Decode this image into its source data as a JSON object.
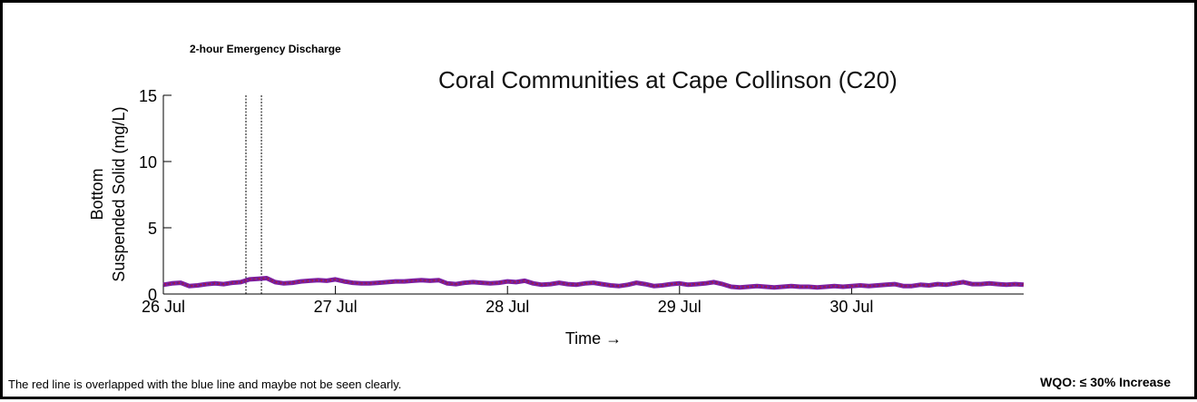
{
  "annotation": "2-hour Emergency Discharge",
  "footnote": "The red line is overlapped with the blue line and maybe not be seen clearly.",
  "wqo": "WQO: ≤ 30% Increase",
  "chart_data": {
    "type": "line",
    "title": "Coral Communities at Cape Collinson (C20)",
    "xlabel": "Time →",
    "ylabel_line1": "Bottom",
    "ylabel_line2": "Suspended Solid (mg/L)",
    "ylim": [
      0,
      15
    ],
    "yticks": [
      0,
      5,
      10,
      15
    ],
    "xlim": [
      0,
      5
    ],
    "xticks": [
      {
        "value": 0,
        "label": "26 Jul"
      },
      {
        "value": 1,
        "label": "27 Jul"
      },
      {
        "value": 2,
        "label": "28 Jul"
      },
      {
        "value": 3,
        "label": "29 Jul"
      },
      {
        "value": 4,
        "label": "30 Jul"
      }
    ],
    "discharge_window": [
      0.48,
      0.57
    ],
    "colors": {
      "series_main": "#3a2ab0",
      "series_overlay": "#c0182a",
      "series_outline": "#7a1fa6"
    },
    "series": [
      {
        "x": [
          0,
          0.05,
          0.1,
          0.15,
          0.2,
          0.25,
          0.3,
          0.35,
          0.4,
          0.45,
          0.5,
          0.55,
          0.6,
          0.65,
          0.7,
          0.75,
          0.8,
          0.85,
          0.9,
          0.95,
          1.0,
          1.05,
          1.1,
          1.15,
          1.2,
          1.25,
          1.3,
          1.35,
          1.4,
          1.45,
          1.5,
          1.55,
          1.6,
          1.65,
          1.7,
          1.75,
          1.8,
          1.85,
          1.9,
          1.95,
          2.0,
          2.05,
          2.1,
          2.15,
          2.2,
          2.25,
          2.3,
          2.35,
          2.4,
          2.45,
          2.5,
          2.55,
          2.6,
          2.65,
          2.7,
          2.75,
          2.8,
          2.85,
          2.9,
          2.95,
          3.0,
          3.05,
          3.1,
          3.15,
          3.2,
          3.25,
          3.3,
          3.35,
          3.4,
          3.45,
          3.5,
          3.55,
          3.6,
          3.65,
          3.7,
          3.75,
          3.8,
          3.85,
          3.9,
          3.95,
          4.0,
          4.05,
          4.1,
          4.15,
          4.2,
          4.25,
          4.3,
          4.35,
          4.4,
          4.45,
          4.5,
          4.55,
          4.6,
          4.65,
          4.7,
          4.75,
          4.8,
          4.85,
          4.9,
          4.95,
          5.0
        ],
        "y": [
          0.7,
          0.8,
          0.85,
          0.6,
          0.65,
          0.75,
          0.8,
          0.75,
          0.85,
          0.9,
          1.1,
          1.15,
          1.2,
          0.9,
          0.8,
          0.85,
          0.95,
          1.0,
          1.05,
          1.0,
          1.1,
          0.95,
          0.85,
          0.8,
          0.8,
          0.85,
          0.9,
          0.95,
          0.95,
          1.0,
          1.05,
          1.0,
          1.05,
          0.8,
          0.75,
          0.85,
          0.9,
          0.85,
          0.8,
          0.85,
          0.95,
          0.9,
          1.0,
          0.8,
          0.7,
          0.75,
          0.85,
          0.75,
          0.7,
          0.8,
          0.85,
          0.75,
          0.65,
          0.6,
          0.7,
          0.85,
          0.75,
          0.6,
          0.65,
          0.75,
          0.8,
          0.7,
          0.75,
          0.8,
          0.9,
          0.75,
          0.55,
          0.5,
          0.55,
          0.6,
          0.55,
          0.5,
          0.55,
          0.6,
          0.55,
          0.55,
          0.5,
          0.55,
          0.6,
          0.55,
          0.6,
          0.65,
          0.6,
          0.65,
          0.7,
          0.75,
          0.6,
          0.6,
          0.7,
          0.65,
          0.75,
          0.7,
          0.8,
          0.9,
          0.75,
          0.75,
          0.8,
          0.75,
          0.7,
          0.75,
          0.7
        ]
      }
    ]
  }
}
